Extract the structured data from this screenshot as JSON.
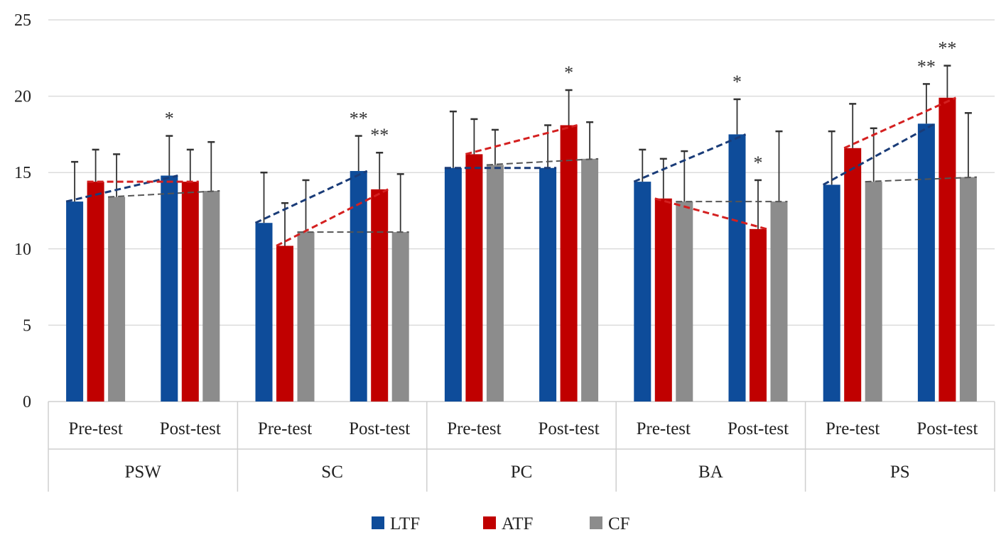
{
  "chart_data": {
    "type": "bar",
    "title": "",
    "xlabel": "",
    "ylabel": "",
    "ylim": [
      0,
      25
    ],
    "yticks": [
      "0",
      "5",
      "10",
      "15",
      "20",
      "25"
    ],
    "grid": true,
    "legend_position": "bottom",
    "groups": [
      "PSW",
      "SC",
      "PC",
      "BA",
      "PS"
    ],
    "subcategories": [
      "Pre-test",
      "Post-test"
    ],
    "series": [
      {
        "name": "LTF",
        "color": "#0e4c9a",
        "values": [
          [
            13.1,
            14.8
          ],
          [
            11.7,
            15.1
          ],
          [
            15.3,
            15.3
          ],
          [
            14.4,
            17.5
          ],
          [
            14.2,
            18.2
          ]
        ],
        "error_top": [
          [
            15.7,
            17.4
          ],
          [
            15.0,
            17.4
          ],
          [
            19.0,
            18.1
          ],
          [
            16.5,
            19.8
          ],
          [
            17.7,
            20.8
          ]
        ]
      },
      {
        "name": "ATF",
        "color": "#c00000",
        "values": [
          [
            14.4,
            14.4
          ],
          [
            10.2,
            13.9
          ],
          [
            16.2,
            18.1
          ],
          [
            13.3,
            11.3
          ],
          [
            16.6,
            19.9
          ]
        ],
        "error_top": [
          [
            16.5,
            16.5
          ],
          [
            13.0,
            16.3
          ],
          [
            18.5,
            20.4
          ],
          [
            15.9,
            14.5
          ],
          [
            19.5,
            22.0
          ]
        ]
      },
      {
        "name": "CF",
        "color": "#8c8c8c",
        "values": [
          [
            13.4,
            13.8
          ],
          [
            11.1,
            11.1
          ],
          [
            15.5,
            15.9
          ],
          [
            13.1,
            13.1
          ],
          [
            14.4,
            14.7
          ]
        ],
        "error_top": [
          [
            16.2,
            17.0
          ],
          [
            14.5,
            14.9
          ],
          [
            17.8,
            18.3
          ],
          [
            16.4,
            17.7
          ],
          [
            17.9,
            18.9
          ]
        ]
      }
    ],
    "annotations": [
      {
        "group": 0,
        "sub": 1,
        "series": 0,
        "text": "*"
      },
      {
        "group": 1,
        "sub": 1,
        "series": 0,
        "text": "**"
      },
      {
        "group": 1,
        "sub": 1,
        "series": 1,
        "text": "**"
      },
      {
        "group": 2,
        "sub": 1,
        "series": 1,
        "text": "*"
      },
      {
        "group": 3,
        "sub": 1,
        "series": 0,
        "text": "*"
      },
      {
        "group": 3,
        "sub": 1,
        "series": 1,
        "text": "*"
      },
      {
        "group": 4,
        "sub": 1,
        "series": 0,
        "text": "**"
      },
      {
        "group": 4,
        "sub": 1,
        "series": 1,
        "text": "**"
      }
    ]
  }
}
